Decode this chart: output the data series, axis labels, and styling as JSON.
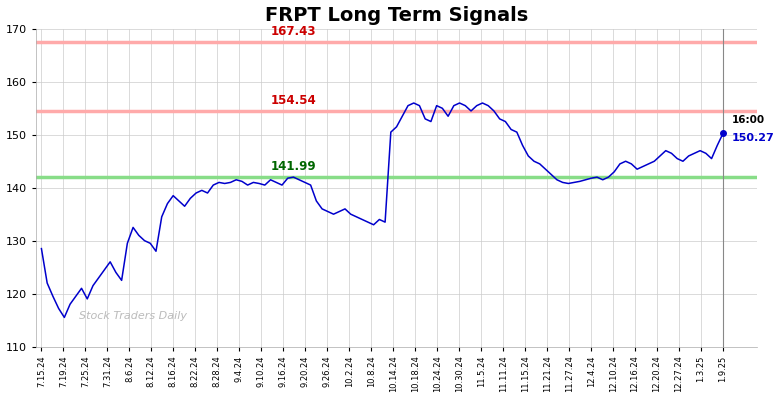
{
  "title": "FRPT Long Term Signals",
  "title_fontsize": 14,
  "title_fontweight": "bold",
  "ylim": [
    110,
    170
  ],
  "yticks": [
    110,
    120,
    130,
    140,
    150,
    160,
    170
  ],
  "resistance_high": 167.43,
  "resistance_low": 154.54,
  "support": 141.99,
  "last_price": 150.27,
  "last_time_label": "16:00",
  "line_color": "#0000cc",
  "watermark_text": "Stock Traders Daily",
  "watermark_color": "#bbbbbb",
  "xtick_labels": [
    "7.15.24",
    "7.19.24",
    "7.25.24",
    "7.31.24",
    "8.6.24",
    "8.12.24",
    "8.16.24",
    "8.22.24",
    "8.28.24",
    "9.4.24",
    "9.10.24",
    "9.16.24",
    "9.20.24",
    "9.26.24",
    "10.2.24",
    "10.8.24",
    "10.14.24",
    "10.18.24",
    "10.24.24",
    "10.30.24",
    "11.5.24",
    "11.11.24",
    "11.15.24",
    "11.21.24",
    "11.27.24",
    "12.4.24",
    "12.10.24",
    "12.16.24",
    "12.20.24",
    "12.27.24",
    "1.3.25",
    "1.9.25"
  ],
  "prices": [
    128.5,
    122.0,
    119.5,
    117.2,
    115.5,
    118.0,
    119.5,
    121.0,
    119.0,
    121.5,
    123.0,
    124.5,
    126.0,
    124.0,
    122.5,
    129.5,
    132.5,
    131.0,
    130.0,
    129.5,
    128.0,
    134.5,
    137.0,
    138.5,
    137.5,
    136.5,
    138.0,
    139.0,
    139.5,
    139.0,
    140.5,
    141.0,
    140.8,
    141.0,
    141.5,
    141.2,
    140.5,
    141.0,
    140.8,
    140.5,
    141.5,
    141.0,
    140.5,
    141.8,
    142.0,
    141.5,
    141.0,
    140.5,
    137.5,
    136.0,
    135.5,
    135.0,
    135.5,
    136.0,
    135.0,
    134.5,
    134.0,
    133.5,
    133.0,
    134.0,
    133.5,
    150.5,
    151.5,
    153.5,
    155.5,
    156.0,
    155.5,
    153.0,
    152.5,
    155.5,
    155.0,
    153.5,
    155.5,
    156.0,
    155.5,
    154.5,
    155.5,
    156.0,
    155.5,
    154.5,
    153.0,
    152.5,
    151.0,
    150.5,
    148.0,
    146.0,
    145.0,
    144.5,
    143.5,
    142.5,
    141.5,
    141.0,
    140.8,
    141.0,
    141.2,
    141.5,
    141.8,
    142.0,
    141.5,
    142.0,
    143.0,
    144.5,
    145.0,
    144.5,
    143.5,
    144.0,
    144.5,
    145.0,
    146.0,
    147.0,
    146.5,
    145.5,
    145.0,
    146.0,
    146.5,
    147.0,
    146.5,
    145.5,
    148.0,
    150.27
  ]
}
